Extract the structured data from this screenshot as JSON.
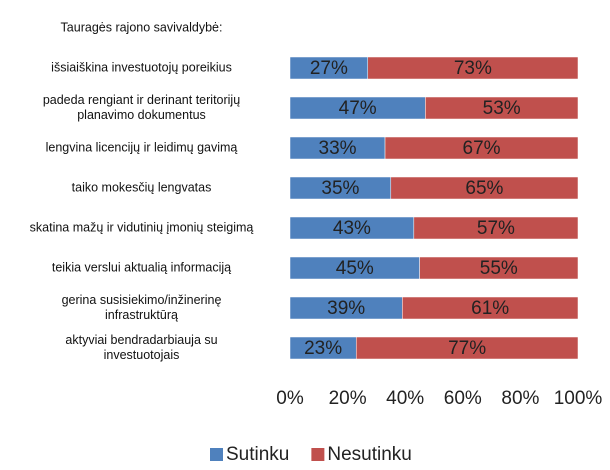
{
  "chart_data": {
    "type": "stacked_barh",
    "categories": [
      "Tauragės rajono savivaldybė:",
      "išsiaiškina investuotojų poreikius",
      "padeda rengiant ir derinant teritorijų\nplanavimo dokumentus",
      "lengvina licencijų ir leidimų gavimą",
      "taiko mokesčių lengvatas",
      "skatina mažų ir vidutinių įmonių steigimą",
      "teikia verslui aktualią informaciją",
      "gerina susisiekimo/inžinerinę\ninfrastruktūrą",
      "aktyviai bendradarbiauja su\ninvestuotojais"
    ],
    "series": [
      {
        "name": "Sutinku",
        "color": "#4f81bd",
        "values": [
          null,
          27,
          47,
          33,
          35,
          43,
          45,
          39,
          23
        ],
        "value_labels": [
          null,
          "27%",
          "47%",
          "33%",
          "35%",
          "43%",
          "45%",
          "39%",
          "23%"
        ]
      },
      {
        "name": "Nesutinku",
        "color": "#c0504d",
        "values": [
          null,
          73,
          53,
          67,
          65,
          57,
          55,
          61,
          77
        ],
        "value_labels": [
          null,
          "73%",
          "53%",
          "67%",
          "65%",
          "57%",
          "55%",
          "61%",
          "77%"
        ]
      }
    ],
    "xlim": [
      0,
      100
    ],
    "xticks": [
      {
        "value": 0,
        "label": "0%"
      },
      {
        "value": 20,
        "label": "20%"
      },
      {
        "value": 40,
        "label": "40%"
      },
      {
        "value": 60,
        "label": "60%"
      },
      {
        "value": 80,
        "label": "80%"
      },
      {
        "value": 100,
        "label": "100%"
      }
    ],
    "legend": "bottom"
  }
}
